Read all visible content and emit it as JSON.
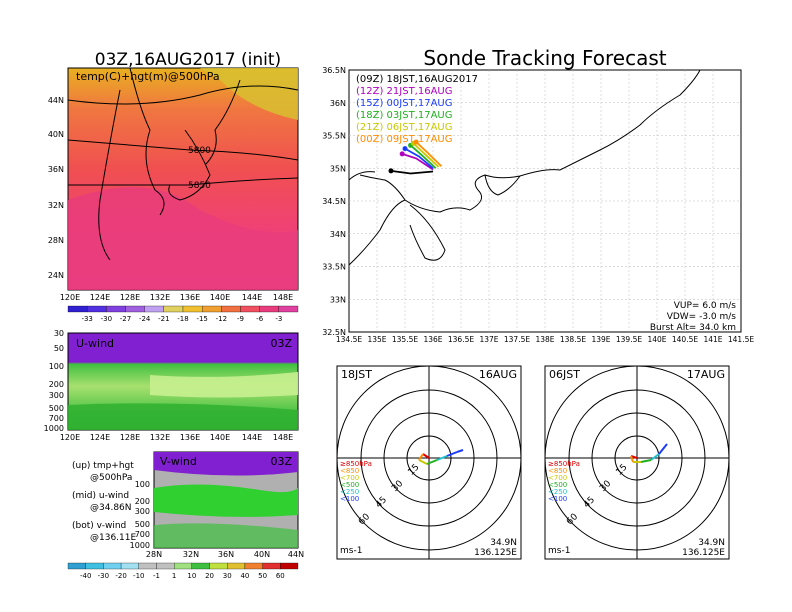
{
  "left_title": "03Z,16AUG2017 (init)",
  "right_title": "Sonde Tracking Forecast",
  "map_panel": {
    "label": "temp(C)+hgt(m)@500hPa",
    "contour_labels": [
      "5800",
      "5850"
    ],
    "lat_ticks": [
      "44N",
      "40N",
      "36N",
      "32N",
      "28N",
      "24N"
    ],
    "lon_ticks": [
      "120E",
      "124E",
      "128E",
      "132E",
      "136E",
      "140E",
      "144E",
      "148E"
    ],
    "colorbar_labels": [
      "-33",
      "-30",
      "-27",
      "-24",
      "-21",
      "-18",
      "-15",
      "-12",
      "-9",
      "-6",
      "-3"
    ]
  },
  "u_panel": {
    "label": "U-wind",
    "time": "03Z",
    "p_ticks": [
      "30",
      "50",
      "100",
      "200",
      "300",
      "500",
      "700",
      "1000"
    ],
    "lon_ticks": [
      "120E",
      "124E",
      "128E",
      "132E",
      "136E",
      "140E",
      "144E",
      "148E"
    ]
  },
  "v_panel": {
    "label": "V-wind",
    "time": "03Z",
    "p_ticks": [
      "100",
      "200",
      "300",
      "500",
      "700",
      "1000"
    ],
    "lat_ticks": [
      "28N",
      "32N",
      "36N",
      "40N",
      "44N"
    ]
  },
  "legend_notes": [
    {
      "top": "(up)  tmp+hgt",
      "bot": "@500hPa"
    },
    {
      "top": "(mid)  u-wind",
      "bot": "@34.86N"
    },
    {
      "top": "(bot)  v-wind",
      "bot": "@136.11E"
    }
  ],
  "wind_colorbar_labels": [
    "-40",
    "-30",
    "-20",
    "-10",
    "-1",
    "1",
    "10",
    "20",
    "30",
    "40",
    "50",
    "60"
  ],
  "track_map": {
    "lat_ticks": [
      "36.5N",
      "36N",
      "35.5N",
      "35N",
      "34.5N",
      "34N",
      "33.5N",
      "33N",
      "32.5N"
    ],
    "lon_ticks": [
      "134.5E",
      "135E",
      "135.5E",
      "136E",
      "136.5E",
      "137E",
      "137.5E",
      "138E",
      "138.5E",
      "139E",
      "139.5E",
      "140E",
      "140.5E",
      "141E",
      "141.5E"
    ],
    "legend": [
      {
        "label": "(09Z)  18JST,16AUG2017",
        "color": "#000000"
      },
      {
        "label": "(12Z)  21JST,16AUG",
        "color": "#b000c0"
      },
      {
        "label": "(15Z)  00JST,17AUG",
        "color": "#1a3cff"
      },
      {
        "label": "(18Z)  03JST,17AUG",
        "color": "#20b020"
      },
      {
        "label": "(21Z)  06JST,17AUG",
        "color": "#c8c800"
      },
      {
        "label": "(00Z)  09JST,17AUG",
        "color": "#ff8c00"
      }
    ],
    "params": {
      "vup": "VUP=  6.0  m/s",
      "vdw": "VDW=  -3.0  m/s",
      "burst": "Burst Alt=  34.0  km"
    }
  },
  "hodographs": [
    {
      "time": "18JST",
      "date": "16AUG",
      "lat": "34.9N",
      "lon": "136.125E",
      "unit": "ms-1",
      "rings": [
        "15",
        "30",
        "45",
        "60"
      ],
      "levels": [
        "≥850hPa",
        "<850",
        "<700",
        "<500",
        "<250",
        "<100"
      ]
    },
    {
      "time": "06JST",
      "date": "17AUG",
      "lat": "34.9N",
      "lon": "136.125E",
      "unit": "ms-1",
      "rings": [
        "15",
        "30",
        "45",
        "60"
      ],
      "levels": [
        "≥850hPa",
        "<850",
        "<700",
        "<500",
        "<250",
        "<100"
      ]
    }
  ],
  "level_colors": [
    "#e00000",
    "#ff8c00",
    "#c8c800",
    "#20b020",
    "#20c0d0",
    "#1a3cff"
  ],
  "chart_data": [
    {
      "type": "heatmap",
      "title": "03Z,16AUG2017 (init)",
      "subtitle": "temp(C)+hgt(m)@500hPa",
      "xlabel": "",
      "ylabel": "",
      "xlim": [
        "120E",
        "150E"
      ],
      "ylim": [
        "22N",
        "48N"
      ],
      "colorbar": [
        -33,
        -30,
        -27,
        -24,
        -21,
        -18,
        -15,
        -12,
        -9,
        -6,
        -3
      ],
      "contours": [
        5800,
        5850
      ]
    },
    {
      "type": "heatmap",
      "title": "U-wind",
      "subtitle": "03Z",
      "x": [
        "120E",
        "124E",
        "128E",
        "132E",
        "136E",
        "140E",
        "144E",
        "148E"
      ],
      "y": [
        30,
        50,
        100,
        200,
        300,
        500,
        700,
        1000
      ],
      "colorbar": [
        -40,
        -30,
        -20,
        -10,
        -1,
        1,
        10,
        20,
        30,
        40,
        50,
        60
      ]
    },
    {
      "type": "heatmap",
      "title": "V-wind",
      "subtitle": "03Z",
      "x": [
        "28N",
        "32N",
        "36N",
        "40N",
        "44N"
      ],
      "y": [
        100,
        200,
        300,
        500,
        700,
        1000
      ],
      "colorbar": [
        -40,
        -30,
        -20,
        -10,
        -1,
        1,
        10,
        20,
        30,
        40,
        50,
        60
      ]
    },
    {
      "type": "line",
      "title": "Sonde Tracking Forecast",
      "xlim": [
        134.5,
        141.5
      ],
      "ylim": [
        32.5,
        36.5
      ],
      "series": [
        {
          "name": "(09Z)  18JST,16AUG2017",
          "x": [
            136.0,
            135.6,
            135.25
          ],
          "y": [
            34.95,
            34.92,
            34.96
          ]
        },
        {
          "name": "(12Z)  21JST,16AUG",
          "x": [
            136.0,
            135.7,
            135.45
          ],
          "y": [
            34.98,
            35.15,
            35.22
          ]
        },
        {
          "name": "(15Z)  00JST,17AUG",
          "x": [
            136.0,
            135.75,
            135.5
          ],
          "y": [
            35.0,
            35.18,
            35.3
          ]
        },
        {
          "name": "(18Z)  03JST,17AUG",
          "x": [
            136.05,
            135.8,
            135.6
          ],
          "y": [
            35.0,
            35.2,
            35.35
          ]
        },
        {
          "name": "(21Z)  06JST,17AUG",
          "x": [
            136.1,
            135.85,
            135.65
          ],
          "y": [
            35.02,
            35.22,
            35.38
          ]
        },
        {
          "name": "(00Z)  09JST,17AUG",
          "x": [
            136.15,
            135.9,
            135.7
          ],
          "y": [
            35.03,
            35.24,
            35.4
          ]
        }
      ]
    }
  ]
}
